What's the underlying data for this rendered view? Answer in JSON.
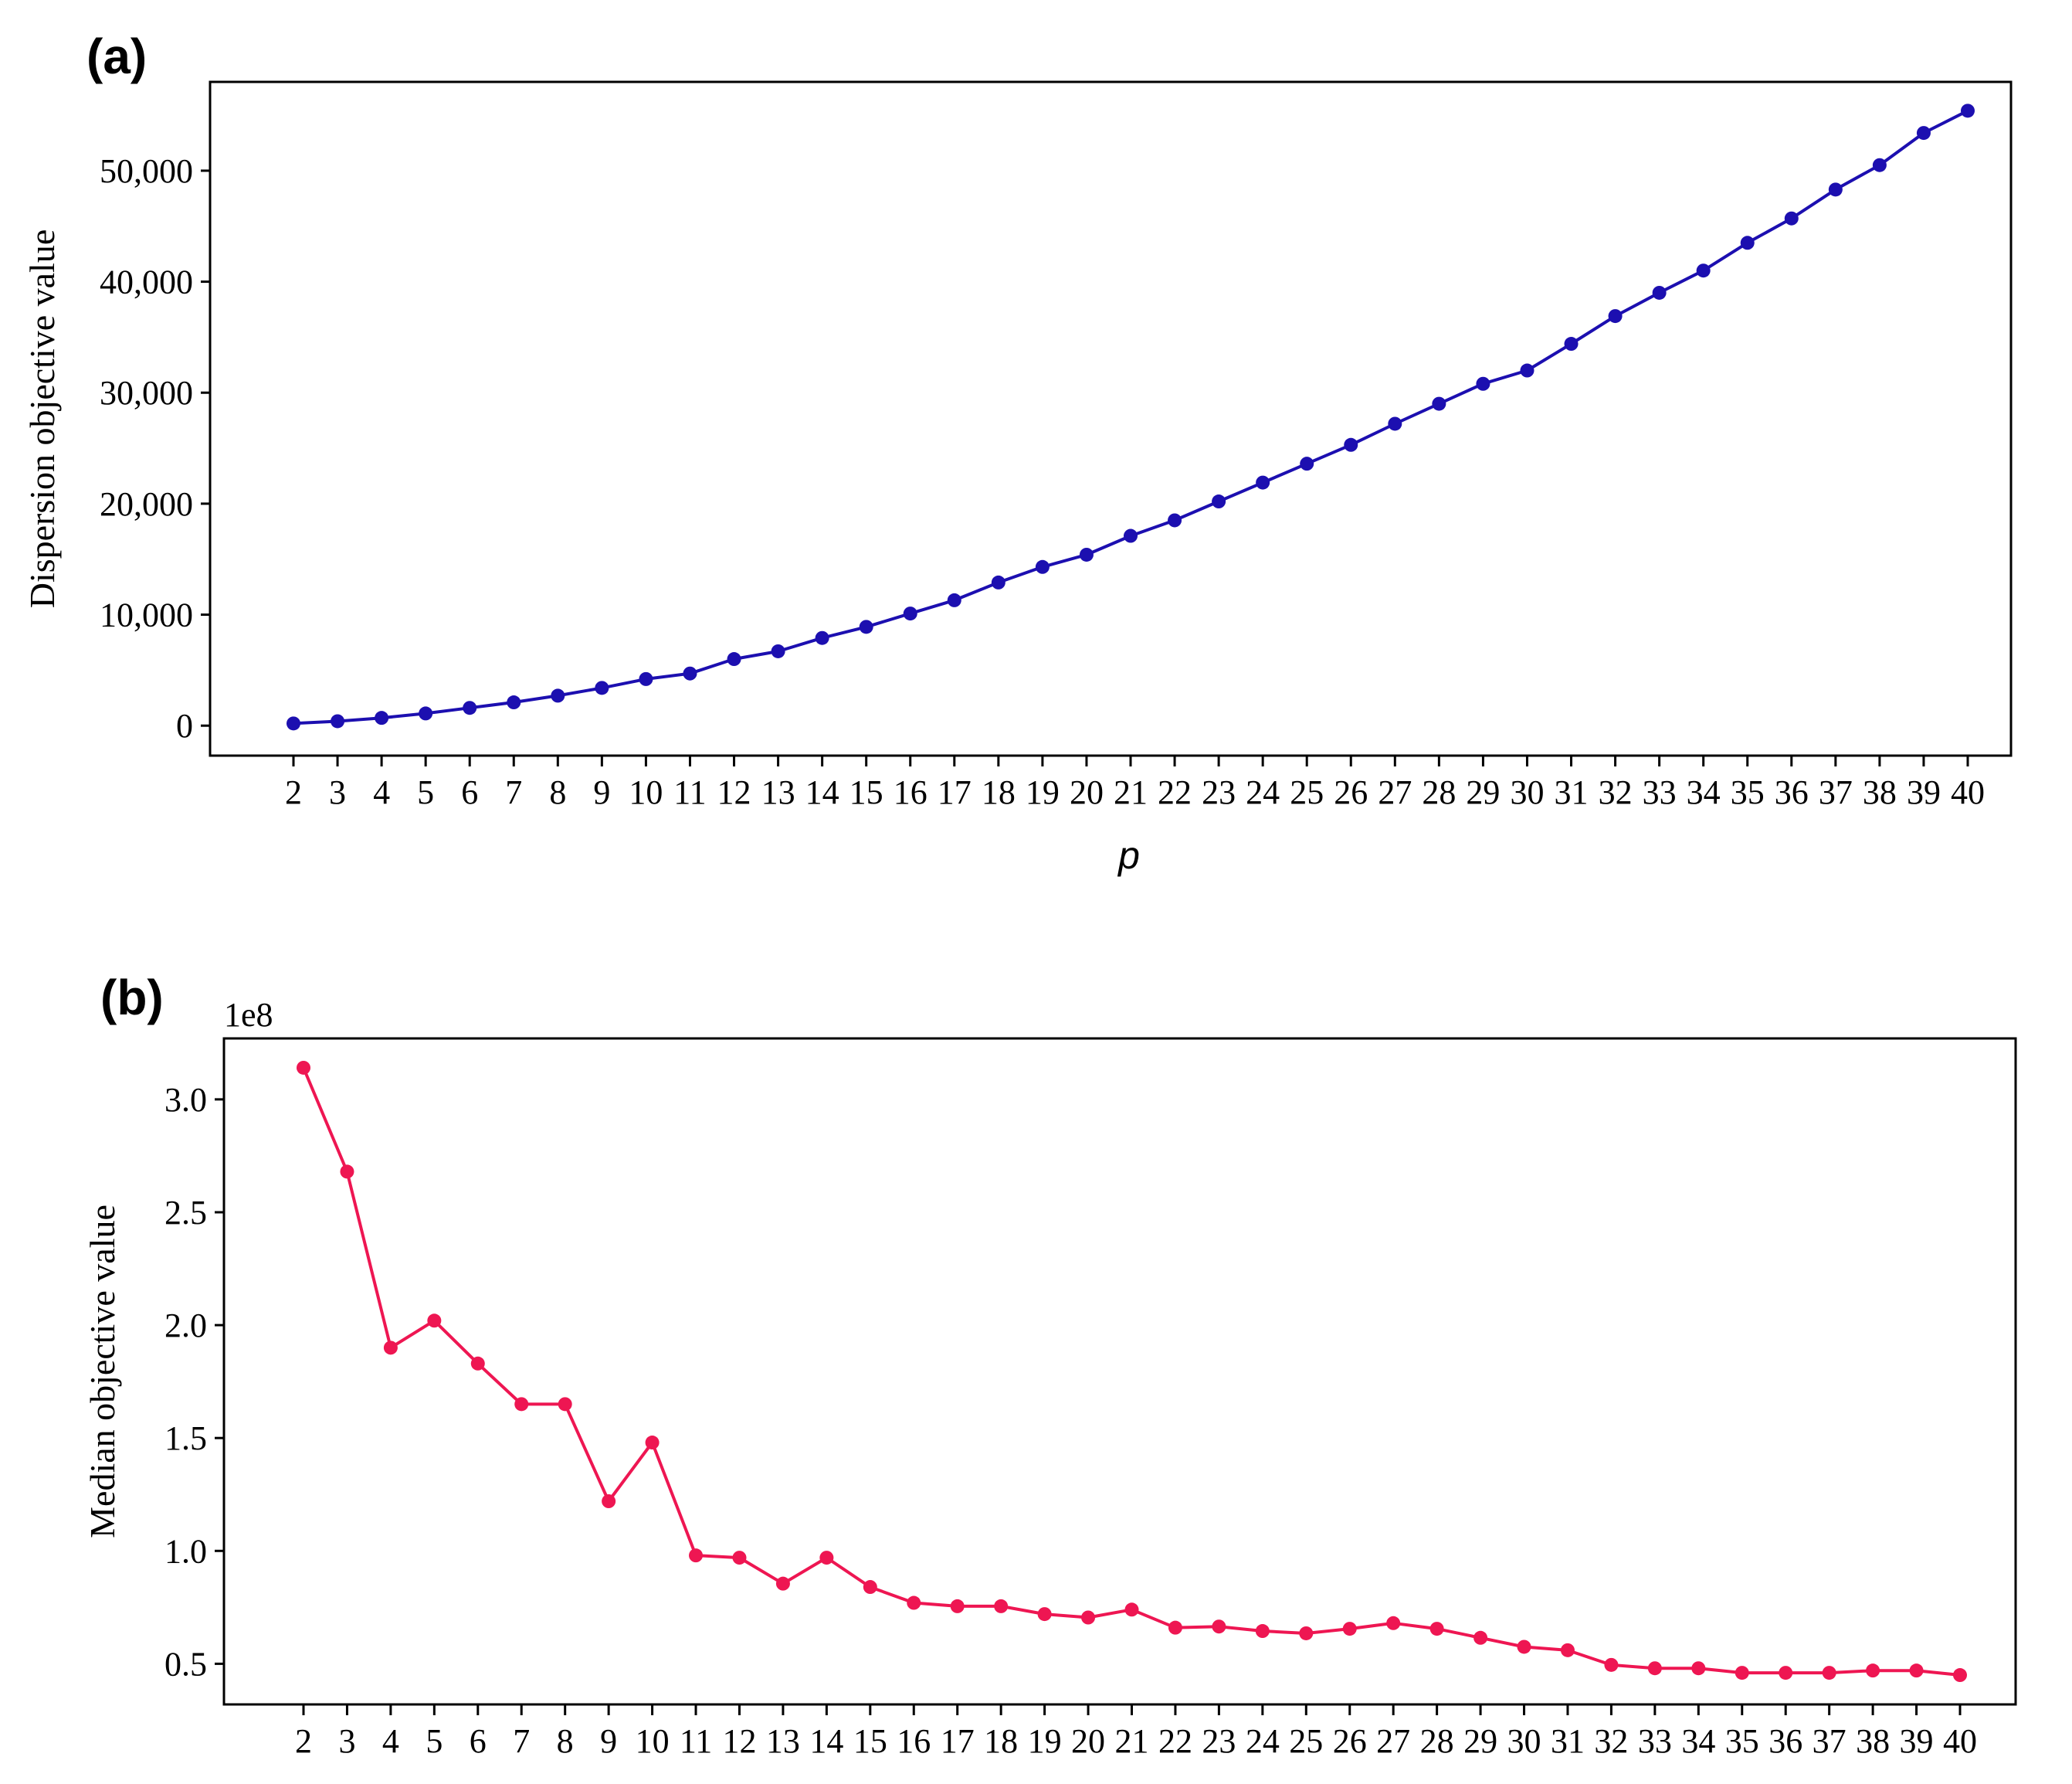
{
  "chart_data": [
    {
      "type": "line",
      "panel_label": "(a)",
      "title": "",
      "xlabel": "p",
      "ylabel": "Dispersion objective value",
      "x": [
        2,
        3,
        4,
        5,
        6,
        7,
        8,
        9,
        10,
        11,
        12,
        13,
        14,
        15,
        16,
        17,
        18,
        19,
        20,
        21,
        22,
        23,
        24,
        25,
        26,
        27,
        28,
        29,
        30,
        31,
        32,
        33,
        34,
        35,
        36,
        37,
        38,
        39,
        40
      ],
      "series": [
        {
          "color": "#1c0fb0",
          "values": [
            200,
            400,
            700,
            1100,
            1600,
            2100,
            2700,
            3400,
            4200,
            4700,
            6000,
            6700,
            7900,
            8900,
            10100,
            11300,
            12900,
            14300,
            15400,
            17100,
            18500,
            20200,
            21900,
            23600,
            25300,
            27200,
            29000,
            30800,
            32000,
            34400,
            36900,
            39000,
            41000,
            43500,
            45700,
            48300,
            50500,
            53400,
            55400
          ]
        }
      ],
      "ylim": [
        -2700,
        58000
      ],
      "yticks": [
        0,
        10000,
        20000,
        30000,
        40000,
        50000
      ],
      "ytick_labels": [
        "0",
        "10,000",
        "20,000",
        "30,000",
        "40,000",
        "50,000"
      ],
      "grid": false
    },
    {
      "type": "line",
      "panel_label": "(b)",
      "title": "",
      "xlabel": "",
      "ylabel": "Median objective value",
      "y_offset_label": "1e8",
      "x": [
        2,
        3,
        4,
        5,
        6,
        7,
        8,
        9,
        10,
        11,
        12,
        13,
        14,
        15,
        16,
        17,
        18,
        19,
        20,
        21,
        22,
        23,
        24,
        25,
        26,
        27,
        28,
        29,
        30,
        31,
        32,
        33,
        34,
        35,
        36,
        37,
        38,
        39,
        40
      ],
      "series": [
        {
          "color": "#ee1652",
          "values": [
            3.14,
            2.68,
            1.9,
            2.02,
            1.83,
            1.65,
            1.65,
            1.22,
            1.48,
            0.98,
            0.97,
            0.855,
            0.97,
            0.84,
            0.77,
            0.755,
            0.755,
            0.72,
            0.705,
            0.74,
            0.66,
            0.665,
            0.645,
            0.635,
            0.655,
            0.68,
            0.655,
            0.615,
            0.575,
            0.56,
            0.495,
            0.48,
            0.48,
            0.46,
            0.46,
            0.46,
            0.47,
            0.47,
            0.45
          ]
        }
      ],
      "ylim": [
        0.32,
        3.27
      ],
      "yticks": [
        0.5,
        1.0,
        1.5,
        2.0,
        2.5,
        3.0
      ],
      "ytick_labels": [
        "0.5",
        "1.0",
        "1.5",
        "2.0",
        "2.5",
        "3.0"
      ],
      "grid": false
    }
  ]
}
